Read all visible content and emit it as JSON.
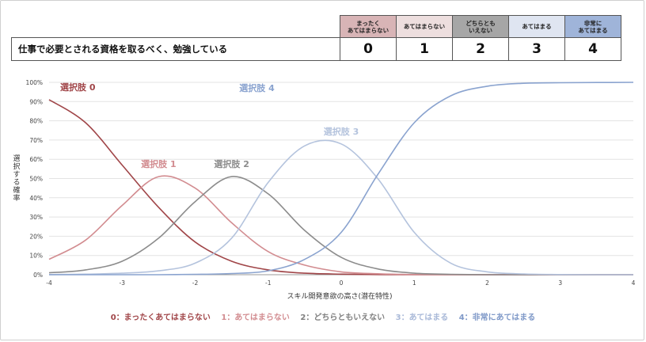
{
  "survey": {
    "question": "仕事で必要とされる資格を取るべく、勉強している",
    "options": [
      {
        "label": "まったく\nあてはまらない",
        "score": "0",
        "color": "#d8b4b6"
      },
      {
        "label": "あてはまらない",
        "score": "1",
        "color": "#eddede"
      },
      {
        "label": "どちらとも\nいえない",
        "score": "2",
        "color": "#a6a6a6"
      },
      {
        "label": "あてはまる",
        "score": "3",
        "color": "#dfe5f1"
      },
      {
        "label": "非常に\nあてはまる",
        "score": "4",
        "color": "#9fb4d9"
      }
    ]
  },
  "chart_data": {
    "type": "line",
    "xlabel": "スキル開発意欲の高さ(潜在特性)",
    "ylabel": "選択する確率",
    "xlim": [
      -4,
      4
    ],
    "ylim": [
      0,
      1
    ],
    "x_ticks": [
      "-4",
      "-3",
      "-2",
      "-1",
      "0",
      "1",
      "2",
      "3",
      "4"
    ],
    "y_ticks": [
      "0%",
      "10%",
      "20%",
      "30%",
      "40%",
      "50%",
      "60%",
      "70%",
      "80%",
      "90%",
      "100%"
    ],
    "grid": true,
    "legend_position": "bottom",
    "x": [
      -4,
      -3.5,
      -3,
      -2.5,
      -2,
      -1.5,
      -1,
      -0.5,
      0,
      0.5,
      1,
      1.5,
      2,
      2.5,
      3,
      3.5,
      4
    ],
    "series": [
      {
        "name": "0：まったくあてはまらない",
        "label": "選択肢 0",
        "color": "#a04548",
        "values": [
          0.91,
          0.79,
          0.57,
          0.35,
          0.17,
          0.07,
          0.025,
          0.008,
          0.003,
          0.001,
          0,
          0,
          0,
          0,
          0,
          0,
          0
        ]
      },
      {
        "name": "1：あてはまらない",
        "label": "選択肢 1",
        "color": "#d28c90",
        "values": [
          0.08,
          0.18,
          0.36,
          0.51,
          0.45,
          0.27,
          0.12,
          0.05,
          0.015,
          0.005,
          0.001,
          0,
          0,
          0,
          0,
          0,
          0
        ]
      },
      {
        "name": "2：どちらともいえない",
        "label": "選択肢 2",
        "color": "#8c8c8c",
        "values": [
          0.01,
          0.025,
          0.07,
          0.19,
          0.38,
          0.51,
          0.42,
          0.23,
          0.09,
          0.03,
          0.008,
          0.002,
          0,
          0,
          0,
          0,
          0
        ]
      },
      {
        "name": "3：あてはまる",
        "label": "選択肢 3",
        "color": "#b4c3dd",
        "values": [
          0.001,
          0.003,
          0.008,
          0.02,
          0.06,
          0.19,
          0.48,
          0.67,
          0.68,
          0.5,
          0.22,
          0.06,
          0.015,
          0.004,
          0.001,
          0,
          0
        ]
      },
      {
        "name": "4：非常にあてはまる",
        "label": "選択肢 4",
        "color": "#8aa3cf",
        "values": [
          0,
          0,
          0,
          0,
          0.002,
          0.006,
          0.02,
          0.08,
          0.22,
          0.52,
          0.79,
          0.93,
          0.98,
          0.995,
          0.998,
          0.999,
          1.0
        ]
      }
    ]
  }
}
